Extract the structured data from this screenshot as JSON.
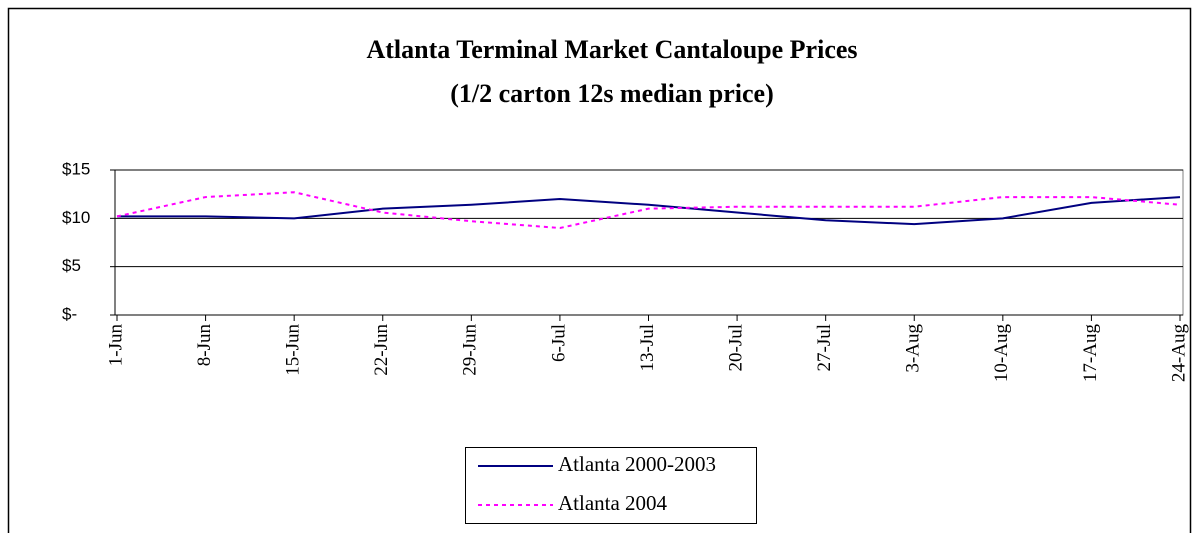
{
  "chart_data": {
    "type": "line",
    "title": "Atlanta Terminal Market Cantaloupe Prices",
    "subtitle": "(1/2 carton 12s median price)",
    "categories": [
      "1-Jun",
      "8-Jun",
      "15-Jun",
      "22-Jun",
      "29-Jun",
      "6-Jul",
      "13-Jul",
      "20-Jul",
      "27-Jul",
      "3-Aug",
      "10-Aug",
      "17-Aug",
      "24-Aug"
    ],
    "series": [
      {
        "name": "Atlanta 2000-2003",
        "color": "#000080",
        "dash": "solid",
        "values": [
          10.2,
          10.2,
          10.0,
          11.0,
          11.4,
          12.0,
          11.4,
          10.6,
          9.8,
          9.4,
          10.0,
          11.6,
          12.2
        ]
      },
      {
        "name": "Atlanta 2004",
        "color": "#ff00ff",
        "dash": "dotted",
        "values": [
          10.2,
          12.2,
          12.7,
          10.6,
          9.7,
          9.0,
          11.0,
          11.2,
          11.2,
          11.2,
          12.2,
          12.2,
          11.4
        ]
      }
    ],
    "ylim": [
      0,
      15
    ],
    "yticks": [
      {
        "value": 0,
        "label": "$-"
      },
      {
        "value": 5,
        "label": "$5"
      },
      {
        "value": 10,
        "label": "$10"
      },
      {
        "value": 15,
        "label": "$15"
      }
    ],
    "grid": true,
    "legend": "bottom"
  }
}
